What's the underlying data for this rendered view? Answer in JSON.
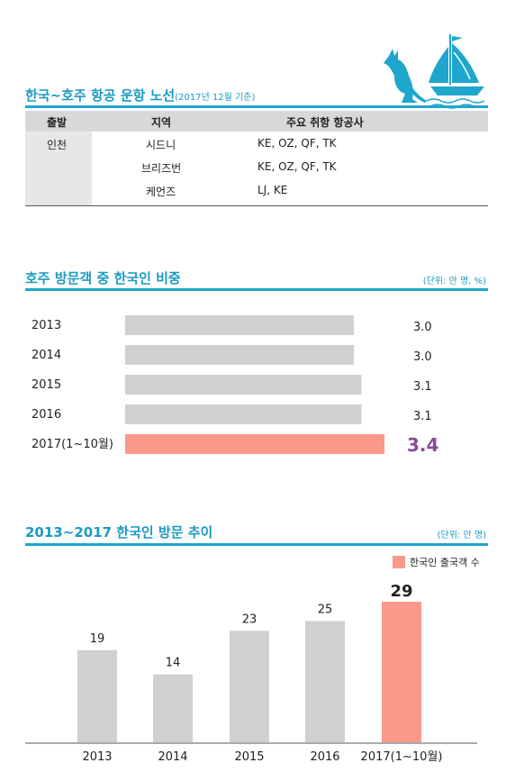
{
  "section1": {
    "title": "한국~호주 항공 운항 노선",
    "note": "(2017년 12월 기준)",
    "headers": [
      "출발",
      "지역",
      "주요 취항 항공사"
    ],
    "departure": "인천",
    "rows": [
      {
        "region": "시드니",
        "airlines": "KE, OZ, QF, TK"
      },
      {
        "region": "브리즈번",
        "airlines": "KE, OZ, QF, TK"
      },
      {
        "region": "케언즈",
        "airlines": "LJ, KE"
      }
    ]
  },
  "section2": {
    "title": "호주 방문객 중 한국인 비중",
    "unit": "(단위: 만 명, %)"
  },
  "section3": {
    "title": "2013~2017 한국인 방문 추이",
    "unit": "(단위: 만 명)",
    "legend": "한국인 출국객 수"
  },
  "colors": {
    "accent": "#1ea6cc",
    "bar_gray": "#d0d0d0",
    "bar_highlight": "#f9998a",
    "highlight_text": "#8a4a9a"
  },
  "chart_data": [
    {
      "type": "bar",
      "orientation": "horizontal",
      "title": "호주 방문객 중 한국인 비중",
      "unit": "(단위: 만 명, %)",
      "categories": [
        "2013",
        "2014",
        "2015",
        "2016",
        "2017(1~10월)"
      ],
      "values": [
        3.0,
        3.0,
        3.1,
        3.1,
        3.4
      ],
      "value_labels": [
        "3.0",
        "3.0",
        "3.1",
        "3.1",
        "3.4"
      ],
      "highlight_index": 4,
      "xlim": [
        0,
        3.4
      ]
    },
    {
      "type": "bar",
      "title": "2013~2017 한국인 방문 추이",
      "unit": "(단위: 만 명)",
      "categories": [
        "2013",
        "2014",
        "2015",
        "2016",
        "2017(1~10월)"
      ],
      "series": [
        {
          "name": "한국인 출국객 수",
          "values": [
            19,
            14,
            23,
            25,
            29
          ]
        }
      ],
      "highlight_index": 4,
      "ylim": [
        0,
        29
      ]
    }
  ]
}
